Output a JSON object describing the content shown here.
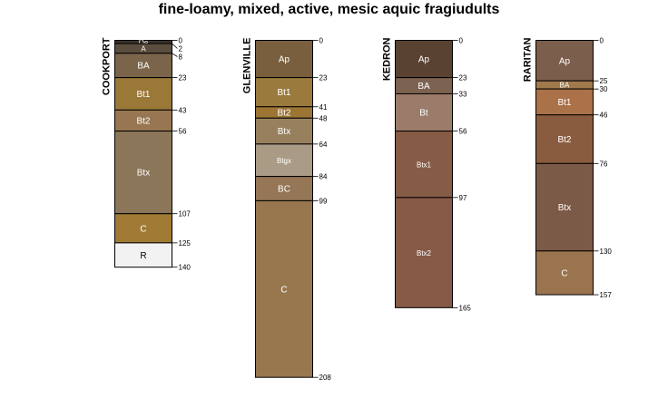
{
  "title": "fine-loamy, mixed, active, mesic aquic fragiudults",
  "profiles": [
    {
      "name": "COOKPORT",
      "horizons": [
        {
          "name": "Oe",
          "top": 0,
          "bottom": 2,
          "color": "#3a332c"
        },
        {
          "name": "A",
          "top": 2,
          "bottom": 8,
          "color": "#5a4d3e"
        },
        {
          "name": "BA",
          "top": 8,
          "bottom": 23,
          "color": "#7a654a"
        },
        {
          "name": "Bt1",
          "top": 23,
          "bottom": 43,
          "color": "#9a7838"
        },
        {
          "name": "Bt2",
          "top": 43,
          "bottom": 56,
          "color": "#977651"
        },
        {
          "name": "Btx",
          "top": 56,
          "bottom": 107,
          "color": "#8c7659"
        },
        {
          "name": "C",
          "top": 107,
          "bottom": 125,
          "color": "#a17a35"
        },
        {
          "name": "R",
          "top": 125,
          "bottom": 140,
          "color": "#f2f2f2"
        }
      ]
    },
    {
      "name": "GLENVILLE",
      "horizons": [
        {
          "name": "Ap",
          "top": 0,
          "bottom": 23,
          "color": "#795f3d"
        },
        {
          "name": "Bt1",
          "top": 23,
          "bottom": 41,
          "color": "#9b7a3e"
        },
        {
          "name": "Bt2",
          "top": 41,
          "bottom": 48,
          "color": "#9c7535"
        },
        {
          "name": "Btx",
          "top": 48,
          "bottom": 64,
          "color": "#98805f"
        },
        {
          "name": "Btgx",
          "top": 64,
          "bottom": 84,
          "color": "#a99b85"
        },
        {
          "name": "BC",
          "top": 84,
          "bottom": 99,
          "color": "#957656"
        },
        {
          "name": "C",
          "top": 99,
          "bottom": 208,
          "color": "#98774f"
        }
      ]
    },
    {
      "name": "KEDRON",
      "horizons": [
        {
          "name": "Ap",
          "top": 0,
          "bottom": 23,
          "color": "#5a4232"
        },
        {
          "name": "BA",
          "top": 23,
          "bottom": 33,
          "color": "#7c6250"
        },
        {
          "name": "Bt",
          "top": 33,
          "bottom": 56,
          "color": "#9b7b6a"
        },
        {
          "name": "Btx1",
          "top": 56,
          "bottom": 97,
          "color": "#865c47"
        },
        {
          "name": "Btx2",
          "top": 97,
          "bottom": 165,
          "color": "#875a47"
        }
      ]
    },
    {
      "name": "RARITAN",
      "horizons": [
        {
          "name": "Ap",
          "top": 0,
          "bottom": 25,
          "color": "#7b5e4b"
        },
        {
          "name": "BA",
          "top": 25,
          "bottom": 30,
          "color": "#a0794d"
        },
        {
          "name": "Bt1",
          "top": 30,
          "bottom": 46,
          "color": "#ab7149"
        },
        {
          "name": "Bt2",
          "top": 46,
          "bottom": 76,
          "color": "#8a5c3f"
        },
        {
          "name": "Btx",
          "top": 76,
          "bottom": 130,
          "color": "#7c5a48"
        },
        {
          "name": "C",
          "top": 130,
          "bottom": 157,
          "color": "#99744f"
        }
      ]
    }
  ]
}
